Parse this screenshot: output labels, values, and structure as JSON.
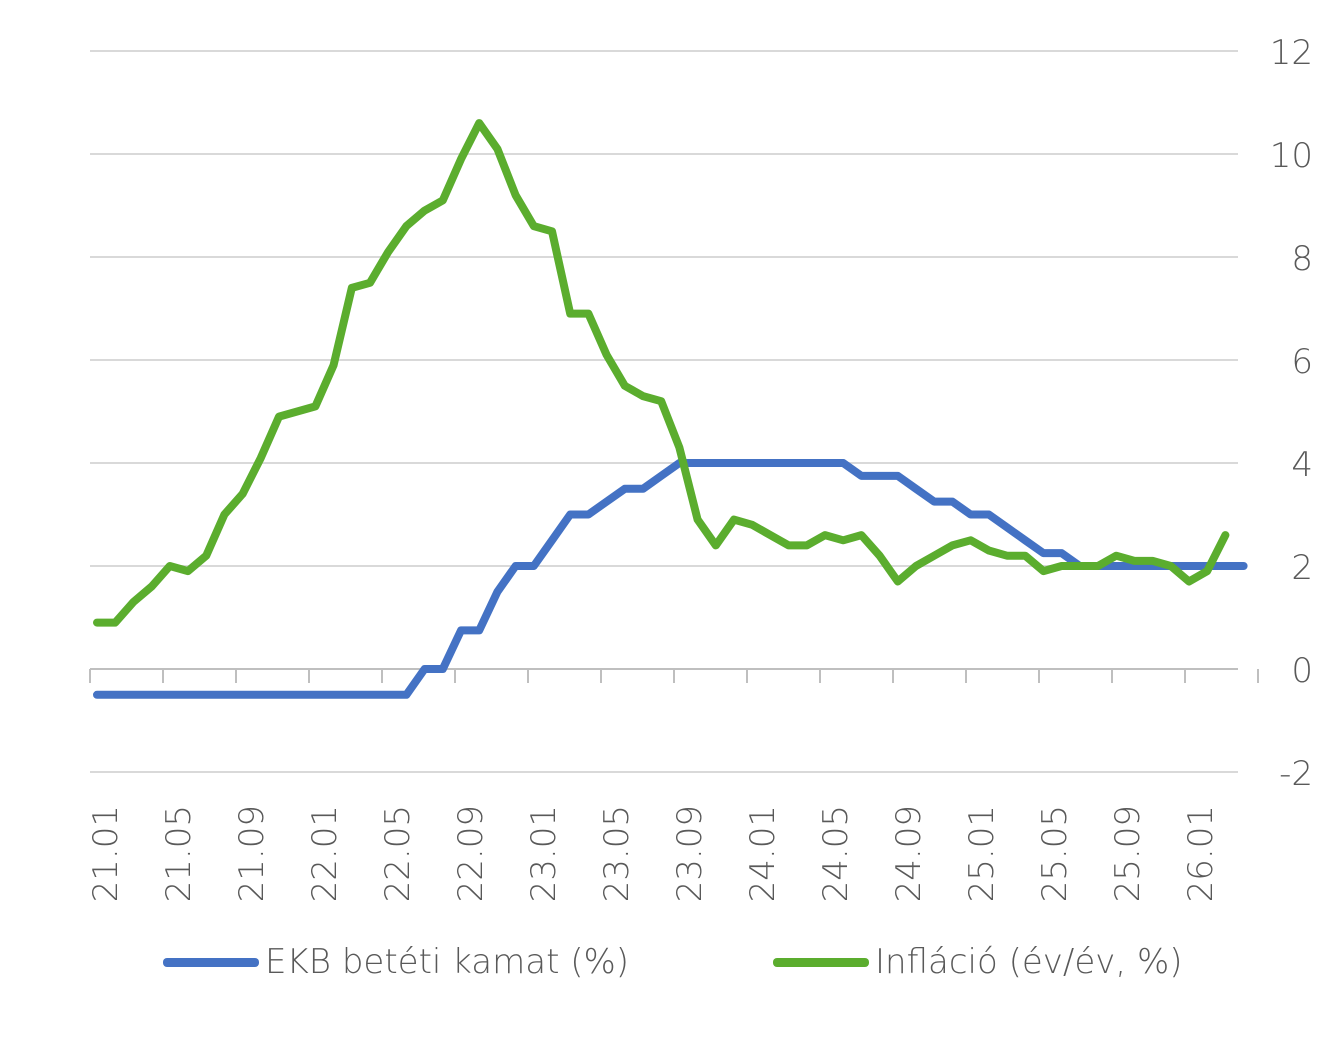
{
  "chart_data": {
    "type": "line",
    "title": "",
    "xlabel": "",
    "ylabel": "",
    "ylim": [
      -2,
      12
    ],
    "y_ticks": [
      "12",
      "10",
      "8",
      "6",
      "4",
      "2",
      "0",
      "-2"
    ],
    "y_axis_position": "right",
    "x_tick_labels": [
      "21.01",
      "21.05",
      "21.09",
      "22.01",
      "22.05",
      "22.09",
      "23.01",
      "23.05",
      "23.09",
      "24.01",
      "24.05",
      "24.09",
      "25.01",
      "25.05",
      "25.09",
      "26.01"
    ],
    "grid": true,
    "legend_position": "bottom",
    "series": [
      {
        "name": "EKB betéti kamat (%)",
        "color": "#4472C4",
        "values": [
          -0.5,
          -0.5,
          -0.5,
          -0.5,
          -0.5,
          -0.5,
          -0.5,
          -0.5,
          -0.5,
          -0.5,
          -0.5,
          -0.5,
          -0.5,
          -0.5,
          -0.5,
          -0.5,
          -0.5,
          -0.5,
          0,
          0,
          0.75,
          0.75,
          1.5,
          2,
          2,
          2.5,
          3,
          3,
          3.25,
          3.5,
          3.5,
          3.75,
          4,
          4,
          4,
          4,
          4,
          4,
          4,
          4,
          4,
          4,
          3.75,
          3.75,
          3.75,
          3.5,
          3.25,
          3.25,
          3,
          3,
          2.75,
          2.5,
          2.25,
          2.25,
          2,
          2,
          2,
          2,
          2,
          2,
          2,
          2,
          2,
          2
        ]
      },
      {
        "name": "Infláció (év/év, %)",
        "color": "#5BAD2E",
        "values": [
          0.9,
          0.9,
          1.3,
          1.6,
          2.0,
          1.9,
          2.2,
          3.0,
          3.4,
          4.1,
          4.9,
          5.0,
          5.1,
          5.9,
          7.4,
          7.5,
          8.1,
          8.6,
          8.9,
          9.1,
          9.9,
          10.6,
          10.1,
          9.2,
          8.6,
          8.5,
          6.9,
          6.9,
          6.1,
          5.5,
          5.3,
          5.2,
          4.3,
          2.9,
          2.4,
          2.9,
          2.8,
          2.6,
          2.4,
          2.4,
          2.6,
          2.5,
          2.6,
          2.2,
          1.7,
          2.0,
          2.2,
          2.4,
          2.5,
          2.3,
          2.2,
          2.2,
          1.9,
          2.0,
          2.0,
          2.0,
          2.2,
          2.1,
          2.1,
          2.0,
          1.7,
          1.9,
          2.6
        ]
      }
    ]
  },
  "legend": {
    "item1_label": "EKB betéti kamat (%)",
    "item2_label": "Infláció (év/év, %)"
  }
}
